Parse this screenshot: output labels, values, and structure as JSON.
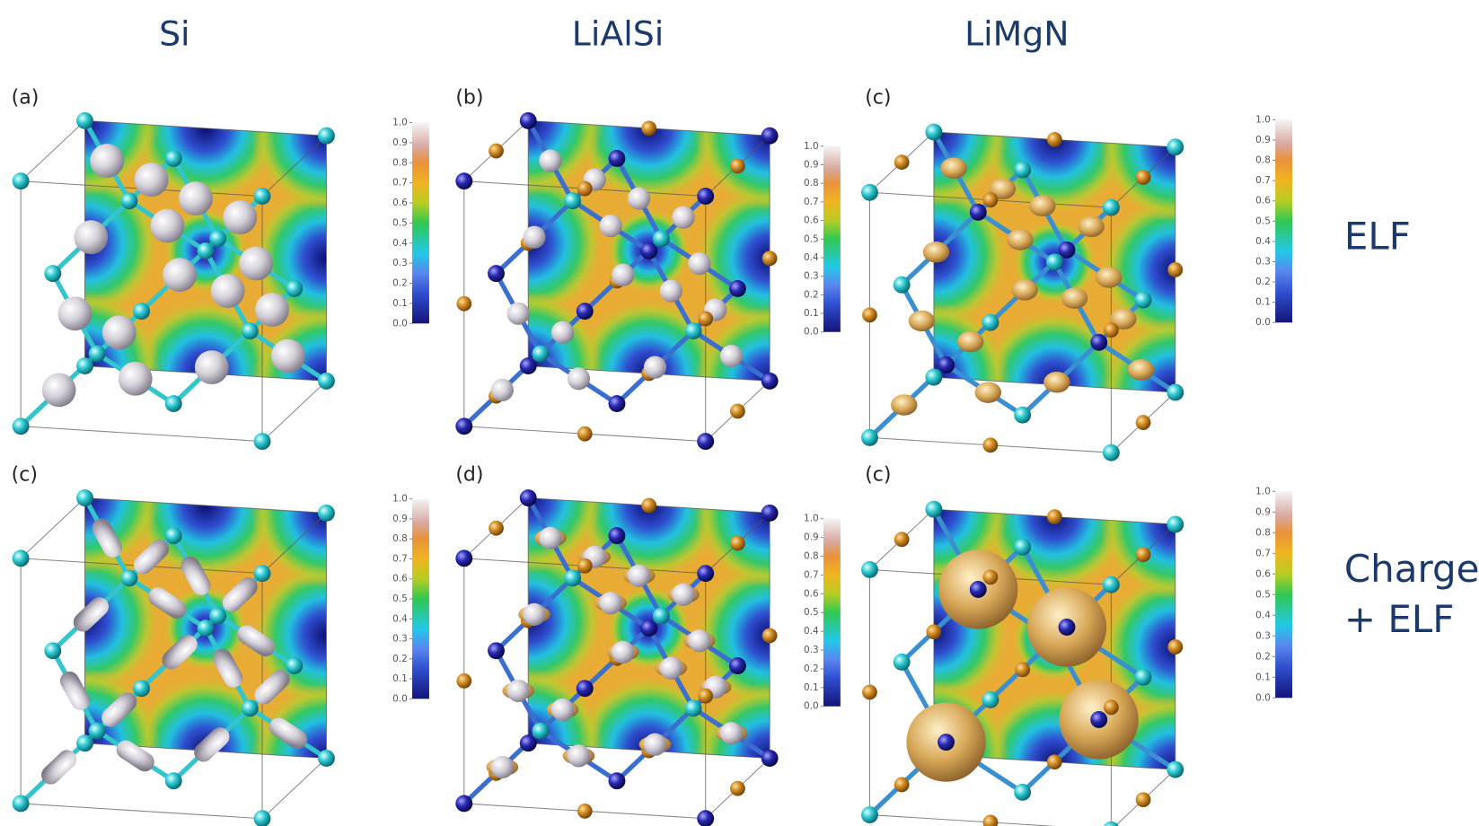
{
  "column_titles": [
    "Si",
    "LiAlSi",
    "LiMgN"
  ],
  "panel_labels": [
    [
      "(a)",
      "(b)",
      "(c)"
    ],
    [
      "(c)",
      "(d)",
      "(c)"
    ]
  ],
  "row_labels": [
    [
      "ELF"
    ],
    [
      "Charge",
      "+ ELF"
    ]
  ],
  "colorbar": {
    "ylim": [
      0,
      1
    ],
    "ticks": [
      {
        "value": 0,
        "label": "0.0"
      },
      0.1,
      0.2,
      0.3,
      0.4,
      0.5,
      0.6,
      0.7,
      0.8,
      0.9,
      {
        "value": 1,
        "label": "1.0"
      }
    ]
  }
}
